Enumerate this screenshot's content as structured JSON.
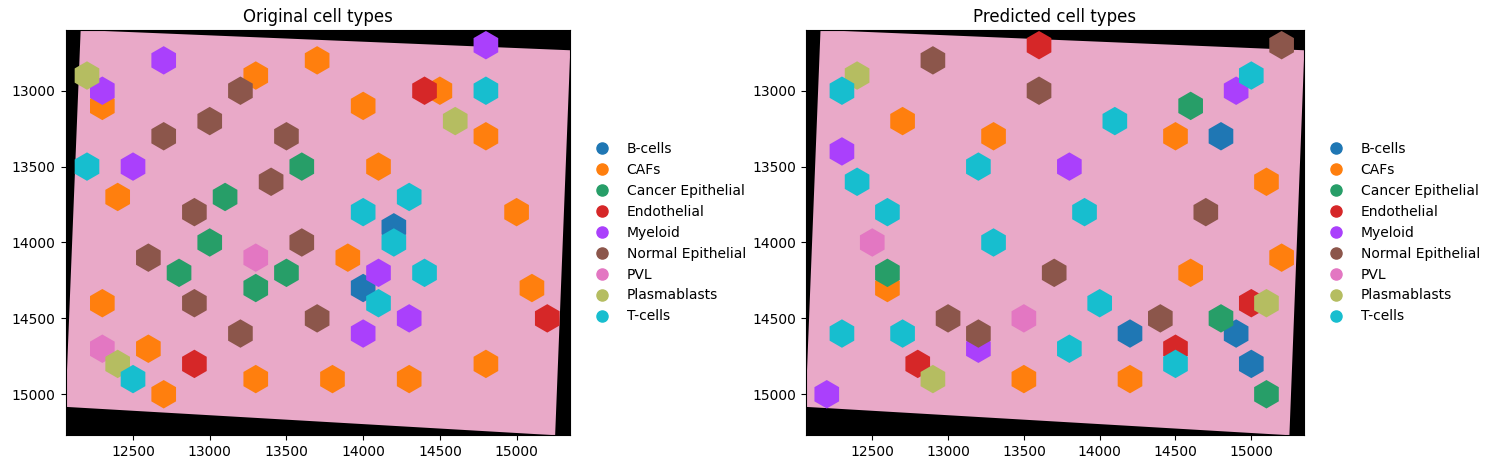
{
  "chart_data": [
    {
      "type": "scatter",
      "title": "Original cell types",
      "xlim": [
        12060,
        15350
      ],
      "ylim": [
        15270,
        12600
      ],
      "xticks": [
        12500,
        13000,
        13500,
        14000,
        14500,
        15000
      ],
      "yticks": [
        13000,
        13500,
        14000,
        14500,
        15000
      ],
      "legend": "right",
      "series": [
        {
          "name": "B-cells",
          "color": "#1f77b4",
          "x": [
            14200,
            14000
          ],
          "y": [
            13900,
            14300
          ]
        },
        {
          "name": "CAFs",
          "color": "#ff7f0e",
          "x": [
            12300,
            12400,
            12300,
            12600,
            13300,
            13700,
            14000,
            14500,
            14800,
            15000,
            15100,
            14800,
            14300,
            13800,
            13300,
            12700,
            14100,
            13900
          ],
          "y": [
            13100,
            13700,
            14400,
            14700,
            12900,
            12800,
            13100,
            13000,
            13300,
            13800,
            14300,
            14800,
            14900,
            14900,
            14900,
            15000,
            13500,
            14100
          ]
        },
        {
          "name": "Cancer Epithelial",
          "color": "#279e68",
          "x": [
            13100,
            13000,
            13300,
            13500,
            13600,
            12800
          ],
          "y": [
            13700,
            14000,
            14300,
            14200,
            13500,
            14200
          ]
        },
        {
          "name": "Endothelial",
          "color": "#d62728",
          "x": [
            15200,
            12900,
            14400
          ],
          "y": [
            14500,
            14800,
            13000
          ]
        },
        {
          "name": "Myeloid",
          "color": "#aa40fc",
          "x": [
            12300,
            12700,
            14100,
            14300,
            14000,
            12500,
            14800
          ],
          "y": [
            13000,
            12800,
            14200,
            14500,
            14600,
            13500,
            12700
          ]
        },
        {
          "name": "Normal Epithelial",
          "color": "#8c564b",
          "x": [
            12700,
            12900,
            12600,
            13000,
            13200,
            13400,
            13600,
            13700,
            13200,
            12900,
            13500
          ],
          "y": [
            13300,
            13800,
            14100,
            13200,
            13000,
            13600,
            14000,
            14500,
            14600,
            14400,
            13300
          ]
        },
        {
          "name": "PVL",
          "color": "#e377c2",
          "x": [
            13300,
            12300
          ],
          "y": [
            14100,
            14700
          ]
        },
        {
          "name": "Plasmablasts",
          "color": "#b5bd61",
          "x": [
            12200,
            12400,
            14600
          ],
          "y": [
            12900,
            14800,
            13200
          ]
        },
        {
          "name": "T-cells",
          "color": "#17becf",
          "x": [
            14000,
            14200,
            14400,
            14100,
            14300,
            12500,
            14800,
            12200
          ],
          "y": [
            13800,
            14000,
            14200,
            14400,
            13700,
            14900,
            13000,
            13500
          ]
        }
      ]
    },
    {
      "type": "scatter",
      "title": "Predicted cell types",
      "xlim": [
        12060,
        15350
      ],
      "ylim": [
        15270,
        12600
      ],
      "xticks": [
        12500,
        13000,
        13500,
        14000,
        14500,
        15000
      ],
      "yticks": [
        13000,
        13500,
        14000,
        14500,
        15000
      ],
      "legend": "right",
      "series": [
        {
          "name": "B-cells",
          "color": "#1f77b4",
          "x": [
            14800,
            14900,
            15000,
            14200
          ],
          "y": [
            13300,
            14600,
            14800,
            14600
          ]
        },
        {
          "name": "CAFs",
          "color": "#ff7f0e",
          "x": [
            12700,
            13300,
            14500,
            14600,
            14200,
            13500,
            12600,
            15100,
            15200
          ],
          "y": [
            13200,
            13300,
            13300,
            14200,
            14900,
            14900,
            14300,
            13600,
            14100
          ]
        },
        {
          "name": "Cancer Epithelial",
          "color": "#279e68",
          "x": [
            14800,
            15100,
            14600,
            12600
          ],
          "y": [
            14500,
            15000,
            13100,
            14200
          ]
        },
        {
          "name": "Endothelial",
          "color": "#d62728",
          "x": [
            12800,
            13600,
            15000,
            14500
          ],
          "y": [
            14800,
            12700,
            14400,
            14700
          ]
        },
        {
          "name": "Myeloid",
          "color": "#aa40fc",
          "x": [
            14900,
            12300,
            13800,
            13200,
            12200
          ],
          "y": [
            13000,
            13400,
            13500,
            14700,
            15000
          ]
        },
        {
          "name": "Normal Epithelial",
          "color": "#8c564b",
          "x": [
            12900,
            13600,
            13700,
            13000,
            13200,
            14700,
            15200,
            14400
          ],
          "y": [
            12800,
            13000,
            14200,
            14500,
            14600,
            13800,
            12700,
            14500
          ]
        },
        {
          "name": "PVL",
          "color": "#e377c2",
          "x": [
            12500,
            13500
          ],
          "y": [
            14000,
            14500
          ]
        },
        {
          "name": "Plasmablasts",
          "color": "#b5bd61",
          "x": [
            12400,
            12900,
            15100
          ],
          "y": [
            12900,
            14900,
            14400
          ]
        },
        {
          "name": "T-cells",
          "color": "#17becf",
          "x": [
            12300,
            12400,
            12600,
            13200,
            13900,
            14100,
            13300,
            14000,
            12300,
            12700,
            14500,
            15000,
            13800
          ],
          "y": [
            13000,
            13600,
            13800,
            13500,
            13800,
            13200,
            14000,
            14400,
            14600,
            14600,
            14800,
            12900,
            14700
          ]
        }
      ]
    }
  ]
}
